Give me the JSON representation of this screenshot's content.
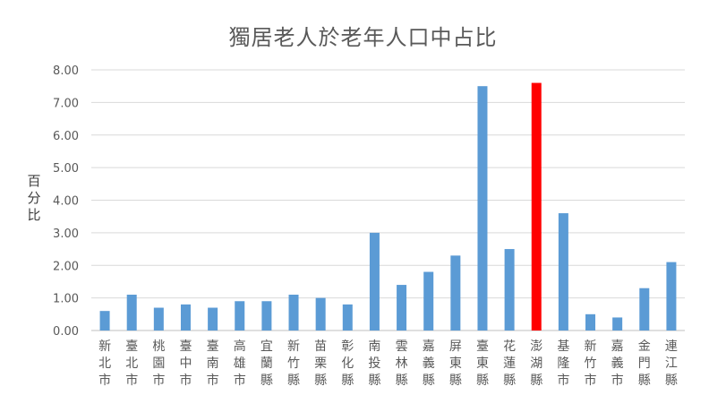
{
  "chart_data": {
    "type": "bar",
    "title": "獨居老人於老年人口中占比",
    "xlabel": "",
    "ylabel": "百分比",
    "ylim": [
      0,
      8
    ],
    "yticks": [
      "0.00",
      "1.00",
      "2.00",
      "3.00",
      "4.00",
      "5.00",
      "6.00",
      "7.00",
      "8.00"
    ],
    "grid": true,
    "categories": [
      "新北市",
      "臺北市",
      "桃園市",
      "臺中市",
      "臺南市",
      "高雄市",
      "宜蘭縣",
      "新竹縣",
      "苗栗縣",
      "彰化縣",
      "南投縣",
      "雲林縣",
      "嘉義縣",
      "屏東縣",
      "臺東縣",
      "花蓮縣",
      "澎湖縣",
      "基隆市",
      "新竹市",
      "嘉義市",
      "金門縣",
      "連江縣"
    ],
    "values": [
      0.6,
      1.1,
      0.7,
      0.8,
      0.7,
      0.9,
      0.9,
      1.1,
      1.0,
      0.8,
      3.0,
      1.4,
      1.8,
      2.3,
      7.5,
      2.5,
      7.6,
      3.6,
      0.5,
      0.4,
      1.3,
      2.1
    ],
    "bar_color": "#5B9BD5",
    "highlight_color": "#FF0000",
    "highlight_category": "澎湖縣"
  }
}
